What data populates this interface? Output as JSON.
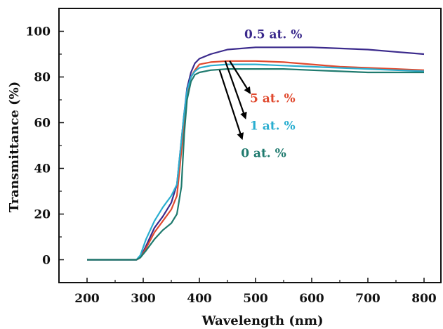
{
  "chart_data": {
    "type": "line",
    "xlabel": "Wavelength (nm)",
    "ylabel": "Transmittance (%)",
    "xlim": [
      150,
      830
    ],
    "ylim": [
      -10,
      110
    ],
    "xticks": [
      200,
      300,
      400,
      500,
      600,
      700,
      800
    ],
    "xtick_labels": [
      "200",
      "300",
      "400",
      "500",
      "600",
      "700",
      "800"
    ],
    "yticks": [
      0,
      20,
      40,
      60,
      80,
      100
    ],
    "ytick_labels": [
      "0",
      "20",
      "40",
      "60",
      "80",
      "100"
    ],
    "grid": false,
    "legend": "none (curves labeled directly)",
    "series": [
      {
        "name": "0.5 at. %",
        "color": "#3b2a8c",
        "x": [
          200,
          288,
          295,
          305,
          320,
          335,
          350,
          360,
          365,
          372,
          378,
          385,
          392,
          400,
          420,
          450,
          500,
          550,
          600,
          650,
          700,
          750,
          800
        ],
        "y": [
          0,
          0,
          1,
          6,
          14,
          19,
          25,
          33,
          45,
          62,
          75,
          82,
          86,
          88,
          90,
          92,
          93,
          93,
          93,
          92.5,
          92,
          91,
          90
        ]
      },
      {
        "name": "5 at. %",
        "color": "#e04a2f",
        "x": [
          200,
          288,
          295,
          305,
          320,
          335,
          350,
          360,
          365,
          372,
          378,
          385,
          392,
          400,
          420,
          450,
          500,
          550,
          600,
          650,
          700,
          750,
          800
        ],
        "y": [
          0,
          0,
          1,
          5,
          12,
          17,
          22,
          28,
          40,
          58,
          72,
          80,
          83,
          85.5,
          86.5,
          87,
          87,
          86.5,
          85.5,
          84.5,
          84,
          83.5,
          83
        ]
      },
      {
        "name": "1 at. %",
        "color": "#2aaed0",
        "x": [
          200,
          288,
          295,
          305,
          320,
          335,
          350,
          360,
          365,
          372,
          378,
          385,
          392,
          400,
          420,
          450,
          500,
          550,
          600,
          650,
          700,
          750,
          800
        ],
        "y": [
          0,
          0,
          2,
          9,
          17,
          23,
          28,
          33,
          45,
          62,
          74,
          80,
          82.5,
          84,
          85,
          85.5,
          85.5,
          85,
          84.5,
          84,
          83.5,
          83,
          82.5
        ]
      },
      {
        "name": "0 at. %",
        "color": "#1f7a6e",
        "x": [
          200,
          288,
          295,
          305,
          320,
          335,
          350,
          360,
          368,
          373,
          378,
          385,
          392,
          400,
          420,
          450,
          500,
          550,
          600,
          650,
          700,
          750,
          800
        ],
        "y": [
          0,
          0,
          1,
          4,
          9,
          13,
          16,
          20,
          32,
          55,
          70,
          78,
          81,
          82,
          83,
          83.5,
          83.5,
          83.5,
          83,
          82.5,
          82,
          82,
          82
        ]
      }
    ],
    "annotations": [
      {
        "text": "0.5 at. %",
        "x": 480,
        "y": 97,
        "color": "#3b2a8c"
      },
      {
        "text": "5 at. %",
        "x": 490,
        "y": 69,
        "color": "#e04a2f"
      },
      {
        "text": "1 at. %",
        "x": 490,
        "y": 57,
        "color": "#2aaed0"
      },
      {
        "text": "0 at. %",
        "x": 474,
        "y": 45,
        "color": "#1f7a6e"
      }
    ],
    "arrows": [
      {
        "from": [
          454,
          87
        ],
        "to": [
          490,
          73
        ]
      },
      {
        "from": [
          446,
          87
        ],
        "to": [
          482,
          62
        ]
      },
      {
        "from": [
          436,
          83
        ],
        "to": [
          476,
          53
        ]
      }
    ]
  }
}
